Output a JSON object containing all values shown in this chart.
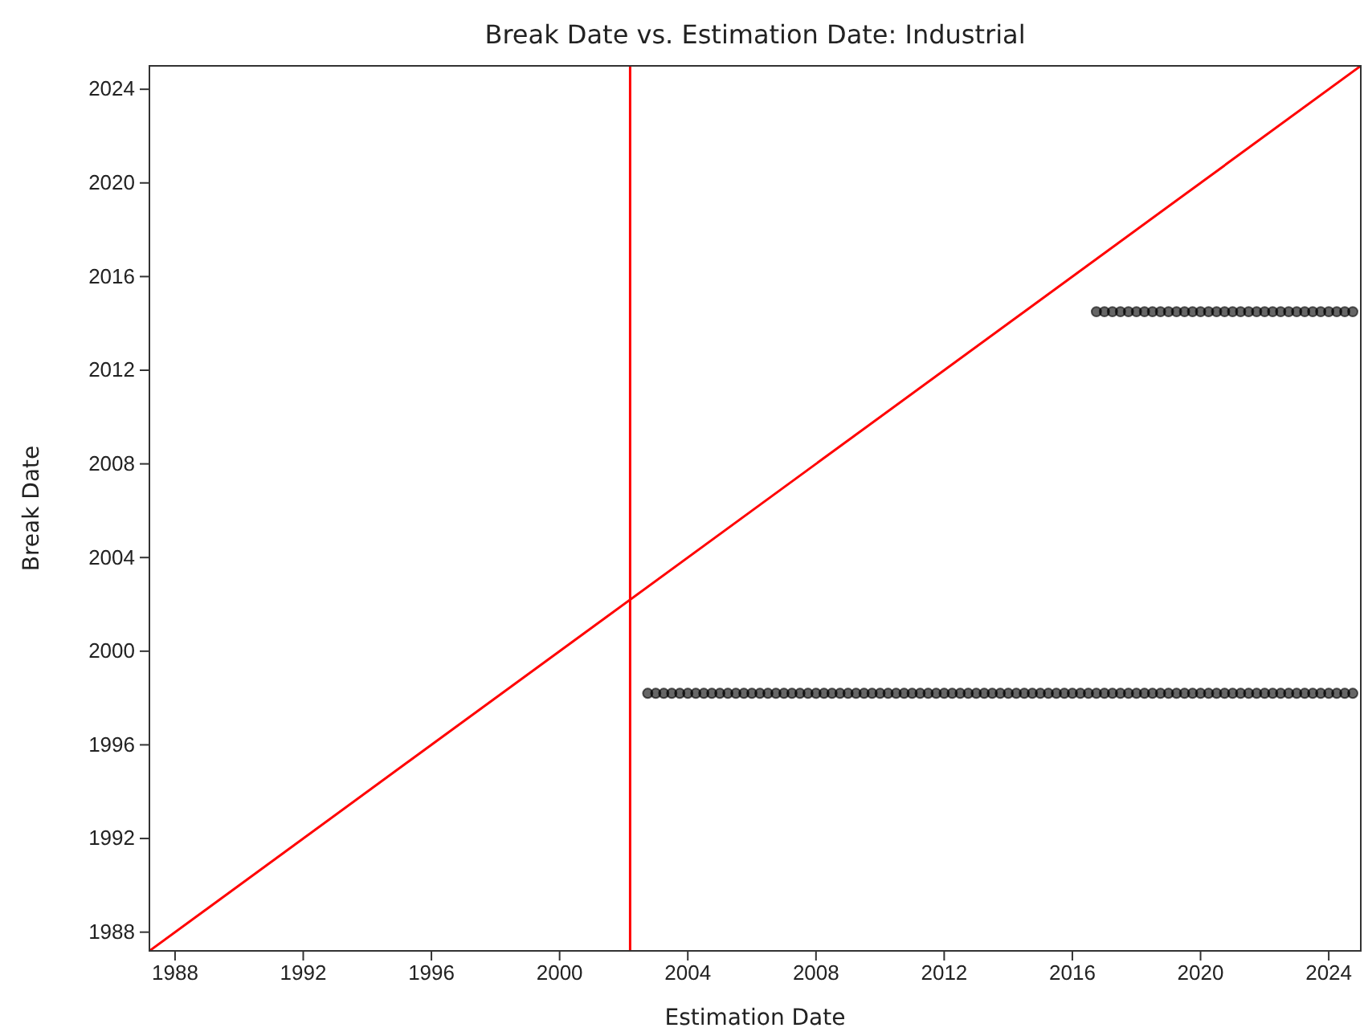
{
  "chart_data": {
    "type": "scatter",
    "title": "Break Date vs. Estimation Date: Industrial",
    "xlabel": "Estimation Date",
    "ylabel": "Break Date",
    "xlim": [
      1987.2,
      2025
    ],
    "ylim": [
      1987.2,
      2025
    ],
    "xticks": [
      1988,
      1992,
      1996,
      2000,
      2004,
      2008,
      2012,
      2016,
      2020,
      2024
    ],
    "yticks": [
      1988,
      1992,
      1996,
      2000,
      2004,
      2008,
      2012,
      2016,
      2020,
      2024
    ],
    "grid": false,
    "marker": "circle",
    "ref_lines": [
      {
        "axis": "x",
        "value": 2002.2,
        "color": "#ff0000"
      }
    ],
    "series": [
      {
        "type": "line",
        "marker": "none",
        "line_style": "solid",
        "color": "#ff0000",
        "x": [
          1987.2,
          2025
        ],
        "values": [
          1987.2,
          2025
        ]
      },
      {
        "color": "#000000",
        "x": [
          2002.75,
          2003,
          2003.25,
          2003.5,
          2003.75,
          2004,
          2004.25,
          2004.5,
          2004.75,
          2005,
          2005.25,
          2005.5,
          2005.75,
          2006,
          2006.25,
          2006.5,
          2006.75,
          2007,
          2007.25,
          2007.5,
          2007.75,
          2008,
          2008.25,
          2008.5,
          2008.75,
          2009,
          2009.25,
          2009.5,
          2009.75,
          2010,
          2010.25,
          2010.5,
          2010.75,
          2011,
          2011.25,
          2011.5,
          2011.75,
          2012,
          2012.25,
          2012.5,
          2012.75,
          2013,
          2013.25,
          2013.5,
          2013.75,
          2014,
          2014.25,
          2014.5,
          2014.75,
          2015,
          2015.25,
          2015.5,
          2015.75,
          2016,
          2016.25,
          2016.5,
          2016.75,
          2017,
          2017.25,
          2017.5,
          2017.75,
          2018,
          2018.25,
          2018.5,
          2018.75,
          2019,
          2019.25,
          2019.5,
          2019.75,
          2020,
          2020.25,
          2020.5,
          2020.75,
          2021,
          2021.25,
          2021.5,
          2021.75,
          2022,
          2022.25,
          2022.5,
          2022.75,
          2023,
          2023.25,
          2023.5,
          2023.75,
          2024,
          2024.25,
          2024.5,
          2024.75
        ],
        "values": [
          1998.2,
          1998.2,
          1998.2,
          1998.2,
          1998.2,
          1998.2,
          1998.2,
          1998.2,
          1998.2,
          1998.2,
          1998.2,
          1998.2,
          1998.2,
          1998.2,
          1998.2,
          1998.2,
          1998.2,
          1998.2,
          1998.2,
          1998.2,
          1998.2,
          1998.2,
          1998.2,
          1998.2,
          1998.2,
          1998.2,
          1998.2,
          1998.2,
          1998.2,
          1998.2,
          1998.2,
          1998.2,
          1998.2,
          1998.2,
          1998.2,
          1998.2,
          1998.2,
          1998.2,
          1998.2,
          1998.2,
          1998.2,
          1998.2,
          1998.2,
          1998.2,
          1998.2,
          1998.2,
          1998.2,
          1998.2,
          1998.2,
          1998.2,
          1998.2,
          1998.2,
          1998.2,
          1998.2,
          1998.2,
          1998.2,
          1998.2,
          1998.2,
          1998.2,
          1998.2,
          1998.2,
          1998.2,
          1998.2,
          1998.2,
          1998.2,
          1998.2,
          1998.2,
          1998.2,
          1998.2,
          1998.2,
          1998.2,
          1998.2,
          1998.2,
          1998.2,
          1998.2,
          1998.2,
          1998.2,
          1998.2,
          1998.2,
          1998.2,
          1998.2,
          1998.2,
          1998.2,
          1998.2,
          1998.2,
          1998.2,
          1998.2,
          1998.2,
          1998.2
        ]
      },
      {
        "color": "#000000",
        "x": [
          2016.75,
          2017,
          2017.25,
          2017.5,
          2017.75,
          2018,
          2018.25,
          2018.5,
          2018.75,
          2019,
          2019.25,
          2019.5,
          2019.75,
          2020,
          2020.25,
          2020.5,
          2020.75,
          2021,
          2021.25,
          2021.5,
          2021.75,
          2022,
          2022.25,
          2022.5,
          2022.75,
          2023,
          2023.25,
          2023.5,
          2023.75,
          2024,
          2024.25,
          2024.5,
          2024.75
        ],
        "values": [
          2014.5,
          2014.5,
          2014.5,
          2014.5,
          2014.5,
          2014.5,
          2014.5,
          2014.5,
          2014.5,
          2014.5,
          2014.5,
          2014.5,
          2014.5,
          2014.5,
          2014.5,
          2014.5,
          2014.5,
          2014.5,
          2014.5,
          2014.5,
          2014.5,
          2014.5,
          2014.5,
          2014.5,
          2014.5,
          2014.5,
          2014.5,
          2014.5,
          2014.5,
          2014.5,
          2014.5,
          2014.5,
          2014.5
        ]
      }
    ]
  }
}
